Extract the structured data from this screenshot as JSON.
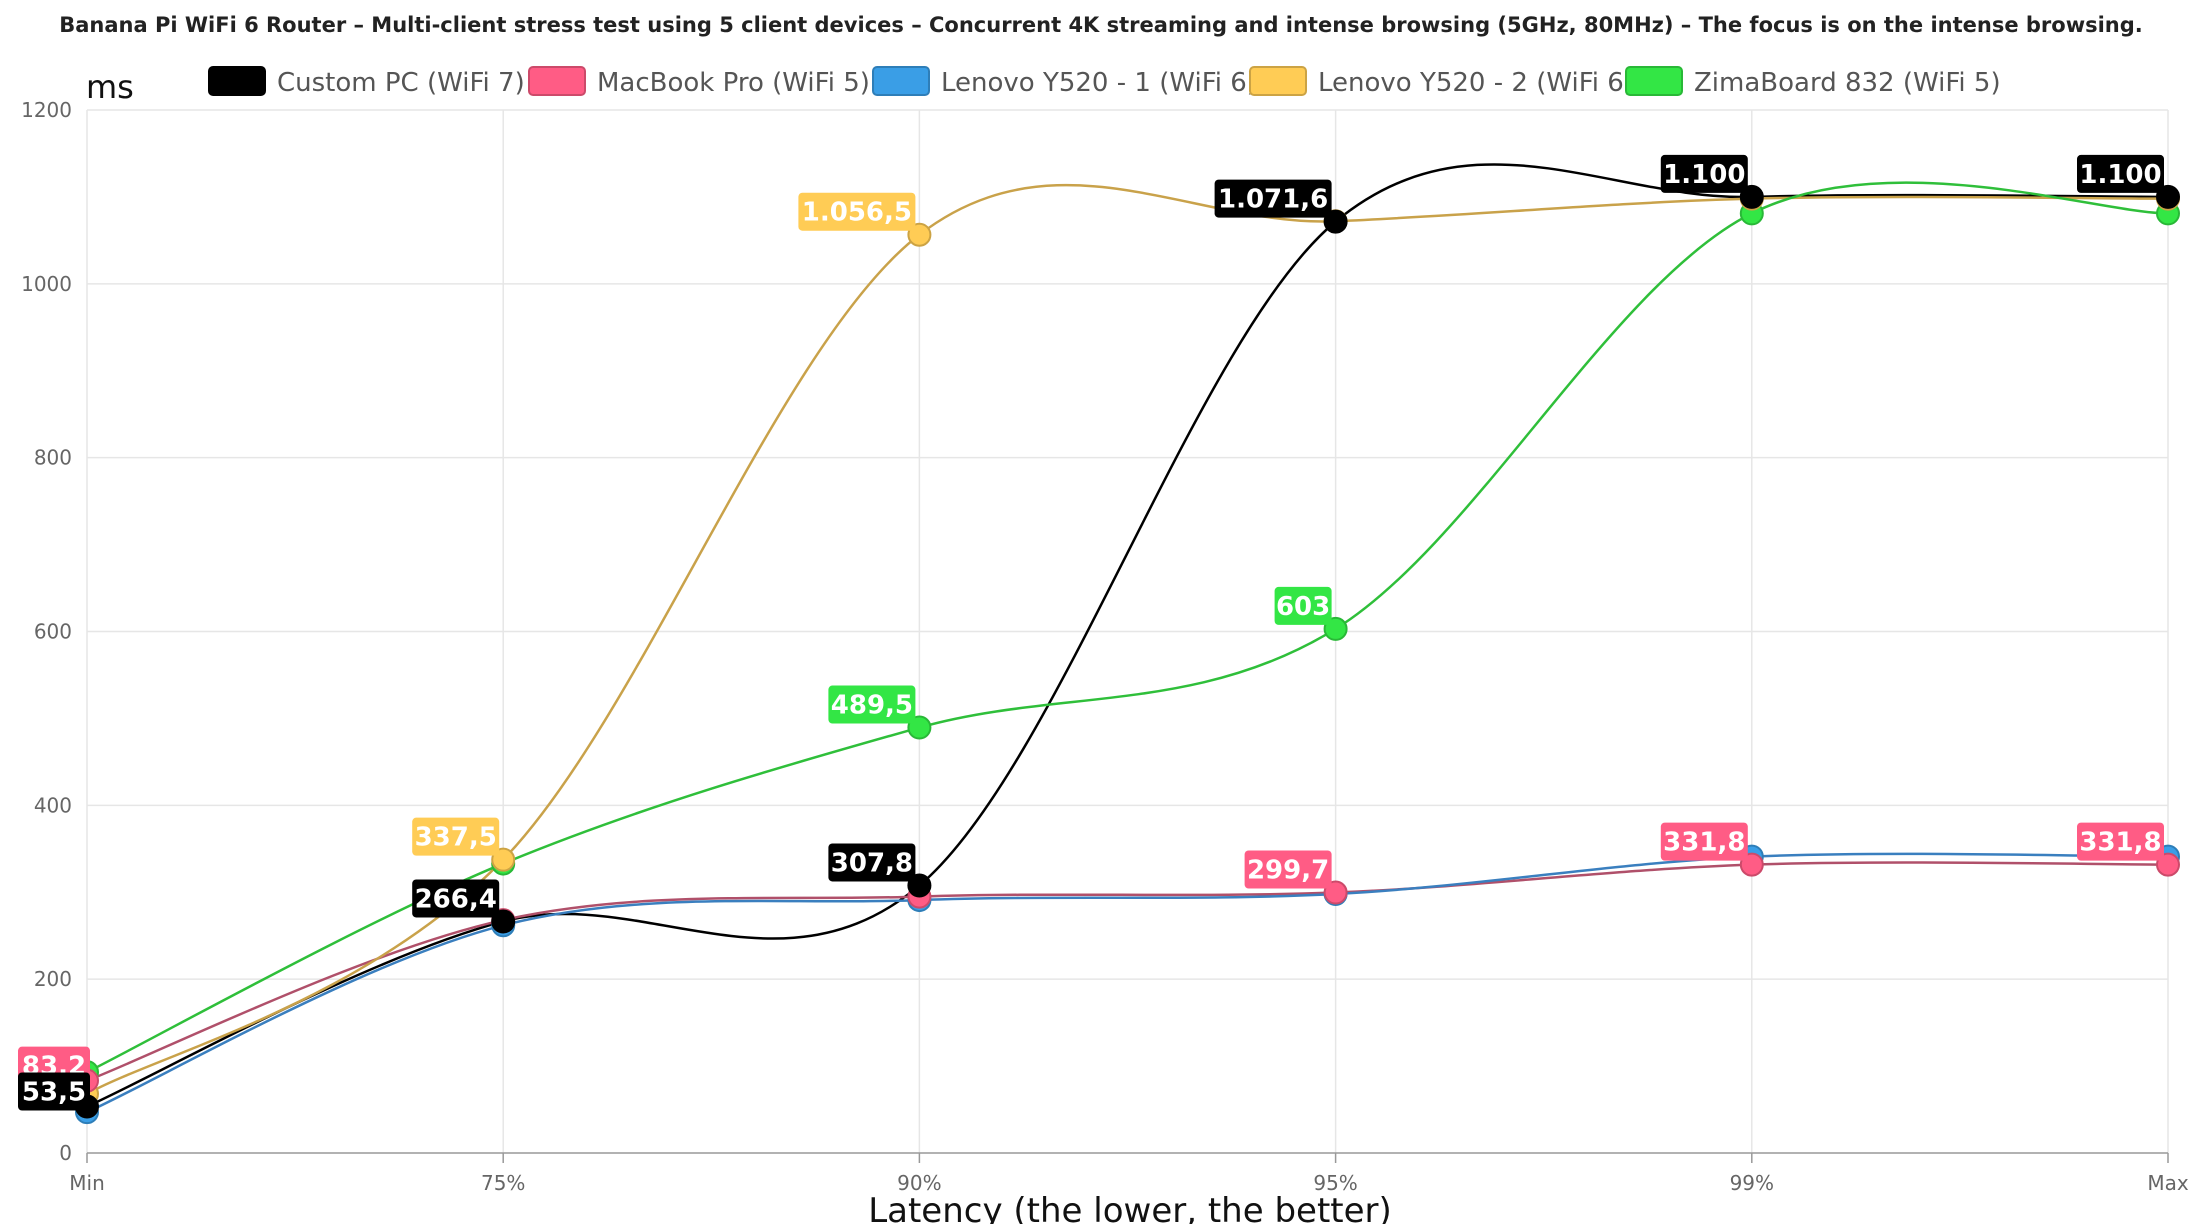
{
  "chart_data": {
    "type": "line",
    "title": "Banana Pi WiFi 6 Router – Multi-client stress test using 5 client devices – Concurrent 4K streaming and intense browsing (5GHz, 80MHz) – The focus is on the intense browsing.",
    "xlabel": "Latency (the lower, the better)",
    "ylabel": "ms",
    "categories": [
      "Min",
      "75%",
      "90%",
      "95%",
      "99%",
      "Max"
    ],
    "ylim": [
      0,
      1200
    ],
    "yticks": [
      "0",
      "200",
      "400",
      "600",
      "800",
      "1000",
      "1200"
    ],
    "grid": true,
    "legend_position": "top",
    "series": [
      {
        "name": "Custom PC (WiFi 7)",
        "color": "#000000",
        "values": [
          53.5,
          266.4,
          307.8,
          1071.6,
          1100,
          1100
        ],
        "labels": [
          "53,5",
          "266,4",
          "307,8",
          "1.071,6",
          "1.100",
          "1.100"
        ]
      },
      {
        "name": "MacBook Pro (WiFi 5)",
        "color": "#ff5c85",
        "values": [
          83.2,
          268,
          295,
          299.7,
          331.8,
          331.8
        ],
        "labels": [
          "83,2",
          "",
          "",
          "299,7",
          "331,8",
          "331,8"
        ]
      },
      {
        "name": "Lenovo Y520 - 1 (WiFi 6)",
        "color": "#3a9ee6",
        "values": [
          47,
          262,
          291,
          298,
          341,
          341
        ],
        "labels": [
          "",
          "",
          "",
          "",
          "",
          ""
        ]
      },
      {
        "name": "Lenovo Y520 - 2 (WiFi 6)",
        "color": "#ffcc55",
        "values": [
          68,
          337.5,
          1056.5,
          1072,
          1098,
          1098
        ],
        "labels": [
          "",
          "337,5",
          "1.056,5",
          "",
          "",
          ""
        ]
      },
      {
        "name": "ZimaBoard 832 (WiFi 5)",
        "color": "#33e645",
        "values": [
          93,
          333,
          489.5,
          603,
          1081,
          1081
        ],
        "labels": [
          "",
          "",
          "489,5",
          "603",
          "",
          ""
        ]
      }
    ]
  }
}
